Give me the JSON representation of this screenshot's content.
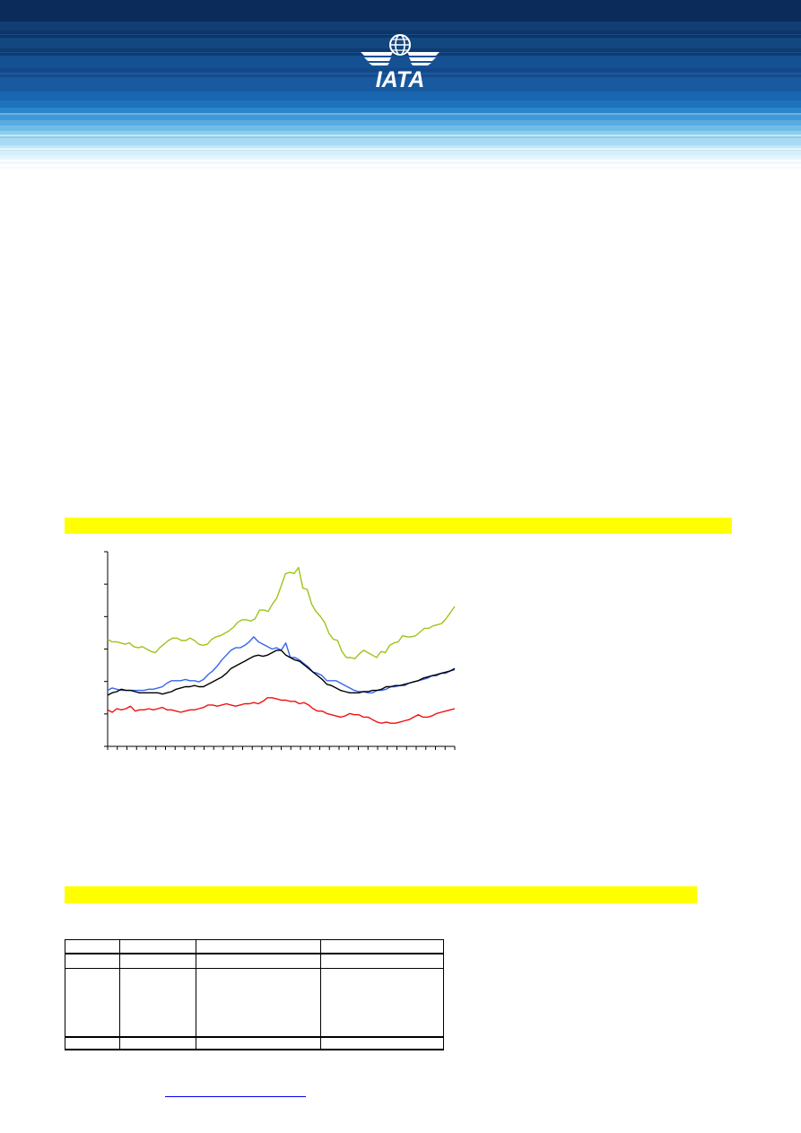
{
  "header": {
    "logo_text": "IATA",
    "colors": {
      "navy": "#0b2f5e",
      "mid_blue": "#1e6fb3",
      "light_blue": "#7fc4ea",
      "pale_blue": "#dff2fb"
    }
  },
  "highlights": {
    "color": "#ffff00"
  },
  "chart_data": {
    "type": "line",
    "title": "",
    "xlabel": "",
    "ylabel": "",
    "grid": false,
    "legend": "none",
    "series": [
      {
        "color": "#9dc41a",
        "values": [
          128,
          126,
          126,
          125,
          124,
          125,
          122,
          121,
          122,
          120,
          118,
          117,
          121,
          124,
          127,
          129,
          129,
          127,
          127,
          129,
          127,
          124,
          123,
          124,
          128,
          130,
          131,
          133,
          135,
          138,
          142,
          144,
          144,
          143,
          145,
          152,
          152,
          151,
          157,
          162,
          172,
          182,
          183,
          182,
          187,
          170,
          169,
          157,
          151,
          147,
          142,
          133,
          128,
          127,
          118,
          113,
          113,
          112,
          116,
          119,
          117,
          115,
          113,
          118,
          117,
          123,
          125,
          126,
          131,
          130,
          130,
          131,
          134,
          137,
          137,
          139,
          140,
          141,
          145,
          150,
          155
        ]
      },
      {
        "color": "#3366ee",
        "values": [
          86,
          88,
          87,
          86,
          86,
          86,
          86,
          86,
          86,
          87,
          87,
          88,
          89,
          92,
          94,
          94,
          94,
          95,
          94,
          94,
          93,
          95,
          99,
          102,
          106,
          111,
          115,
          119,
          121,
          121,
          123,
          126,
          130,
          126,
          124,
          122,
          120,
          121,
          119,
          125,
          113,
          113,
          111,
          108,
          105,
          101,
          100,
          98,
          94,
          94,
          94,
          92,
          90,
          88,
          86,
          85,
          85,
          84,
          84,
          86,
          86,
          87,
          89,
          89,
          90,
          90,
          92,
          93,
          94,
          95,
          96,
          98,
          98,
          100,
          100,
          102,
          103
        ]
      },
      {
        "color": "#000000",
        "values": [
          82,
          84,
          85,
          87,
          86,
          86,
          85,
          84,
          84,
          84,
          84,
          84,
          83,
          84,
          85,
          87,
          88,
          89,
          89,
          90,
          89,
          89,
          91,
          93,
          95,
          97,
          100,
          104,
          106,
          108,
          110,
          112,
          114,
          115,
          114,
          115,
          117,
          119,
          119,
          115,
          113,
          111,
          110,
          107,
          104,
          101,
          98,
          95,
          91,
          90,
          88,
          86,
          85,
          84,
          84,
          84,
          85,
          85,
          86,
          86,
          87,
          89,
          89,
          90,
          90,
          91,
          92,
          93,
          94,
          96,
          97,
          98,
          99,
          100,
          101,
          102,
          104
        ]
      },
      {
        "color": "#ee1111",
        "values": [
          70,
          68,
          71,
          70,
          71,
          73,
          69,
          70,
          70,
          71,
          70,
          71,
          72,
          70,
          70,
          69,
          68,
          69,
          70,
          70,
          71,
          72,
          74,
          74,
          73,
          74,
          75,
          74,
          73,
          74,
          75,
          75,
          76,
          75,
          77,
          80,
          80,
          79,
          78,
          78,
          77,
          77,
          75,
          76,
          74,
          71,
          69,
          69,
          67,
          66,
          65,
          64,
          65,
          67,
          66,
          66,
          64,
          64,
          62,
          60,
          59,
          60,
          59,
          59,
          60,
          61,
          62,
          64,
          66,
          64,
          64,
          65,
          67,
          68,
          69,
          70,
          71
        ]
      }
    ],
    "ylim": [
      40,
      200
    ],
    "y_ticks": 7,
    "x_ticks": 37
  }
}
